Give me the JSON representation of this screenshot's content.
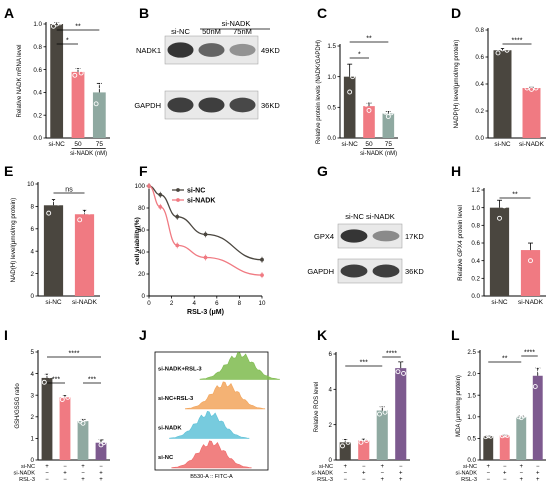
{
  "colors": {
    "dark": "#4a463f",
    "pink": "#f07a82",
    "teal": "#8fa9a1",
    "purple": "#7d5a8f",
    "sig": "#000000",
    "flow_green": "#7ebb4e",
    "flow_orange": "#f2a55c",
    "flow_blue": "#5fc2d8",
    "flow_red": "#ef6b6b",
    "blot_bg": "#e9e9e9",
    "band": "#2b2b2b"
  },
  "panels": {
    "A": "A",
    "B": "B",
    "C": "C",
    "D": "D",
    "E": "E",
    "F": "F",
    "G": "G",
    "H": "H",
    "I": "I",
    "J": "J",
    "K": "K",
    "L": "L"
  },
  "chart_data": [
    {
      "panel": "A",
      "type": "bar",
      "ylabel": "Relative NADK mRNA level",
      "xlabel": "si-NADK (nM)",
      "categories": [
        "si-NC",
        "50",
        "75"
      ],
      "values": [
        1.0,
        0.58,
        0.4
      ],
      "points": [
        [
          0.98,
          1.0,
          1.01
        ],
        [
          0.55,
          0.62,
          0.57
        ],
        [
          0.3,
          0.45,
          0.48
        ]
      ],
      "ylim": [
        0,
        1.0
      ],
      "yticks": [
        "0.0",
        "0.2",
        "0.4",
        "0.6",
        "0.8",
        "1.0"
      ],
      "colors": [
        "#4a463f",
        "#f07a82",
        "#8fa9a1"
      ],
      "significance": [
        {
          "from": 0,
          "to": 1,
          "label": "*"
        },
        {
          "from": 0,
          "to": 2,
          "label": "**"
        }
      ]
    },
    {
      "panel": "C",
      "type": "bar",
      "ylabel": "Relative protein levels (NADK/GAPDH)",
      "xlabel": "si-NADK (nM)",
      "categories": [
        "si-NC",
        "50",
        "75"
      ],
      "values": [
        1.0,
        0.52,
        0.4
      ],
      "points": [
        [
          1.25,
          0.75,
          1.0
        ],
        [
          0.55,
          0.45,
          0.56
        ],
        [
          0.42,
          0.35,
          0.41
        ]
      ],
      "ylim": [
        0,
        1.5
      ],
      "yticks": [
        "0.0",
        "0.5",
        "1.0",
        "1.5"
      ],
      "colors": [
        "#4a463f",
        "#f07a82",
        "#8fa9a1"
      ],
      "significance": [
        {
          "from": 0,
          "to": 1,
          "label": "*"
        },
        {
          "from": 0,
          "to": 2,
          "label": "**"
        }
      ]
    },
    {
      "panel": "D",
      "type": "bar",
      "ylabel": "NADP(H) level(μmol/mg protein)",
      "categories": [
        "si-NC",
        "si-NADK"
      ],
      "values": [
        0.65,
        0.37
      ],
      "points": [
        [
          0.63,
          0.66,
          0.65
        ],
        [
          0.37,
          0.36,
          0.37
        ]
      ],
      "ylim": [
        0,
        0.8
      ],
      "yticks": [
        "0.0",
        "0.2",
        "0.4",
        "0.6",
        "0.8"
      ],
      "colors": [
        "#4a463f",
        "#f07a82"
      ],
      "significance": [
        {
          "from": 0,
          "to": 1,
          "label": "****"
        }
      ]
    },
    {
      "panel": "E",
      "type": "bar",
      "ylabel": "NAD(H) level(μmol/mg protein)",
      "categories": [
        "si-NC",
        "si-NADK"
      ],
      "values": [
        8.1,
        7.3
      ],
      "points": [
        [
          7.4,
          8.6,
          8.3
        ],
        [
          6.8,
          7.6,
          7.5
        ]
      ],
      "ylim": [
        0,
        10
      ],
      "yticks": [
        "0",
        "2",
        "4",
        "6",
        "8",
        "10"
      ],
      "colors": [
        "#4a463f",
        "#f07a82"
      ],
      "significance": [
        {
          "from": 0,
          "to": 1,
          "label": "ns"
        }
      ]
    },
    {
      "panel": "F",
      "type": "line",
      "ylabel": "cell viability(%)",
      "xlabel": "RSL-3 (μM)",
      "x": [
        0,
        1,
        2.5,
        5,
        10
      ],
      "xticks": [
        "0",
        "2",
        "4",
        "6",
        "8",
        "10"
      ],
      "yticks": [
        "0",
        "20",
        "40",
        "60",
        "80",
        "100"
      ],
      "xlim": [
        0,
        10
      ],
      "ylim": [
        0,
        100
      ],
      "series": [
        {
          "name": "si-NC",
          "values": [
            100,
            92,
            72,
            56,
            33
          ],
          "color": "#4a463f"
        },
        {
          "name": "si-NADK",
          "values": [
            100,
            81,
            46,
            35,
            19
          ],
          "color": "#f07a82"
        }
      ]
    },
    {
      "panel": "H",
      "type": "bar",
      "ylabel": "Relative GPX4 protein  level",
      "categories": [
        "si-NC",
        "si-NADK"
      ],
      "values": [
        1.0,
        0.52
      ],
      "points": [
        [
          1.08,
          0.88,
          1.02
        ],
        [
          0.58,
          0.4,
          0.55
        ]
      ],
      "ylim": [
        0,
        1.2
      ],
      "yticks": [
        "0.0",
        "0.2",
        "0.4",
        "0.6",
        "0.8",
        "1.0",
        "1.2"
      ],
      "colors": [
        "#4a463f",
        "#f07a82"
      ],
      "significance": [
        {
          "from": 0,
          "to": 1,
          "label": "**"
        }
      ]
    },
    {
      "panel": "I",
      "type": "bar",
      "ylabel": "GSH/GSSG ratio",
      "categories": [
        "1",
        "2",
        "3",
        "4"
      ],
      "values": [
        3.8,
        2.9,
        1.8,
        0.8
      ],
      "points": [
        [
          3.6,
          4.0,
          3.9
        ],
        [
          2.8,
          3.0,
          2.9
        ],
        [
          1.8,
          1.7,
          1.9
        ],
        [
          1.0,
          0.7,
          0.8
        ]
      ],
      "ylim": [
        0,
        5
      ],
      "yticks": [
        "0",
        "1",
        "2",
        "3",
        "4",
        "5"
      ],
      "colors": [
        "#4a463f",
        "#f07a82",
        "#8fa9a1",
        "#7d5a8f"
      ],
      "significance": [
        {
          "from": 0,
          "to": 1,
          "label": "***"
        },
        {
          "from": 2,
          "to": 3,
          "label": "***"
        },
        {
          "from": 0,
          "to": 3,
          "label": "****"
        }
      ],
      "conditions": [
        {
          "label": "si-NC",
          "marks": [
            "+",
            "−",
            "+",
            "−"
          ]
        },
        {
          "label": "si-NADK",
          "marks": [
            "−",
            "+",
            "−",
            "+"
          ]
        },
        {
          "label": "RSL-3",
          "marks": [
            "−",
            "−",
            "+",
            "+"
          ]
        }
      ]
    },
    {
      "panel": "K",
      "type": "bar",
      "ylabel": "Relative ROS level",
      "categories": [
        "1",
        "2",
        "3",
        "4"
      ],
      "values": [
        1.0,
        1.1,
        2.8,
        5.2
      ],
      "points": [
        [
          0.8,
          1.2,
          1.0
        ],
        [
          1.0,
          1.2,
          1.1
        ],
        [
          2.6,
          3.1,
          2.7
        ],
        [
          5.0,
          5.7,
          4.9
        ]
      ],
      "ylim": [
        0,
        6
      ],
      "yticks": [
        "0",
        "2",
        "4",
        "6"
      ],
      "colors": [
        "#4a463f",
        "#f07a82",
        "#8fa9a1",
        "#7d5a8f"
      ],
      "significance": [
        {
          "from": 2,
          "to": 3,
          "label": "****"
        },
        {
          "from": 0,
          "to": 2,
          "label": "***"
        }
      ],
      "conditions": [
        {
          "label": "si-NC",
          "marks": [
            "+",
            "−",
            "+",
            "−"
          ]
        },
        {
          "label": "si-NADK",
          "marks": [
            "−",
            "+",
            "−",
            "+"
          ]
        },
        {
          "label": "RSL-3",
          "marks": [
            "−",
            "−",
            "+",
            "+"
          ]
        }
      ]
    },
    {
      "panel": "L",
      "type": "bar",
      "ylabel": "MDA (μmol/mg protein)",
      "categories": [
        "1",
        "2",
        "3",
        "4"
      ],
      "values": [
        0.55,
        0.57,
        1.0,
        1.95
      ],
      "points": [
        [
          0.54,
          0.56,
          0.55
        ],
        [
          0.56,
          0.58,
          0.57
        ],
        [
          1.0,
          0.98,
          1.02
        ],
        [
          1.7,
          2.1,
          2.05
        ]
      ],
      "ylim": [
        0,
        2.5
      ],
      "yticks": [
        "0.0",
        "0.5",
        "1.0",
        "1.5",
        "2.0",
        "2.5"
      ],
      "colors": [
        "#4a463f",
        "#f07a82",
        "#8fa9a1",
        "#7d5a8f"
      ],
      "significance": [
        {
          "from": 2,
          "to": 3,
          "label": "****"
        },
        {
          "from": 0,
          "to": 2,
          "label": "**"
        }
      ],
      "conditions": [
        {
          "label": "si-NC",
          "marks": [
            "+",
            "−",
            "+",
            "−"
          ]
        },
        {
          "label": "si-NADK",
          "marks": [
            "−",
            "+",
            "−",
            "+"
          ]
        },
        {
          "label": "RSL-3",
          "marks": [
            "−",
            "−",
            "+",
            "+"
          ]
        }
      ]
    }
  ],
  "blot_B": {
    "header": "si-NADK",
    "col_labels": [
      "si-NC",
      "50nM",
      "75nM"
    ],
    "rows": [
      {
        "label": "NADK1",
        "size": "49KD",
        "intensity": [
          0.95,
          0.7,
          0.45
        ]
      },
      {
        "label": "GAPDH",
        "size": "36KD",
        "intensity": [
          0.9,
          0.9,
          0.85
        ]
      }
    ]
  },
  "blot_G": {
    "col_labels": "si-NC si-NADK",
    "rows": [
      {
        "label": "GPX4",
        "size": "17KD",
        "intensity": [
          0.95,
          0.5
        ]
      },
      {
        "label": "GAPDH",
        "size": "36KD",
        "intensity": [
          0.9,
          0.9
        ]
      }
    ]
  },
  "flow_J": {
    "xlabel": "B530-A :: FITC-A",
    "tracks": [
      {
        "label": "si-NADK+RSL-3",
        "color": "#7ebb4e",
        "center": 0.75
      },
      {
        "label": "si-NC+RSL-3",
        "color": "#f2a55c",
        "center": 0.62
      },
      {
        "label": "si-NADK",
        "color": "#5fc2d8",
        "center": 0.48
      },
      {
        "label": "si-NC",
        "color": "#ef6b6b",
        "center": 0.5
      }
    ]
  }
}
